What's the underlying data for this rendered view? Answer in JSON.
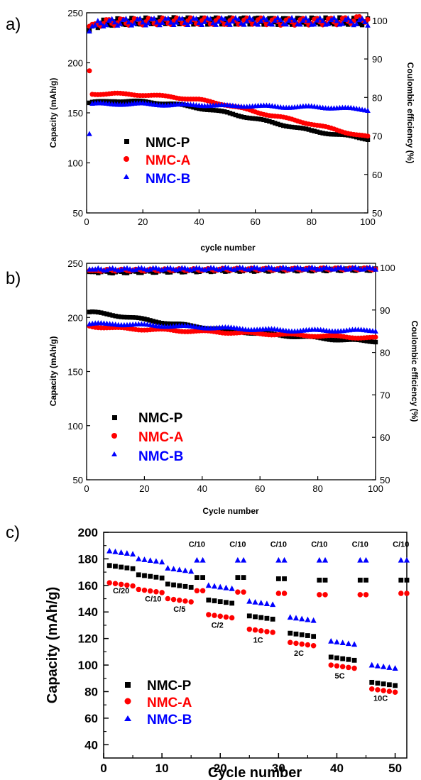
{
  "colors": {
    "NMC-P": "#000000",
    "NMC-A": "#ff0000",
    "NMC-B": "#0000ff"
  },
  "chart_data": [
    {
      "type": "scatter",
      "panel_label": "a)",
      "xlabel": "cycle number",
      "ylabel": "Capacity (mAh/g)",
      "y2label": "Coulombic efficiency (%)",
      "xlim": [
        0,
        100
      ],
      "ylim": [
        50,
        250
      ],
      "y2lim": [
        50,
        102
      ],
      "xticks": [
        "0",
        "20",
        "40",
        "60",
        "80",
        "100"
      ],
      "yticks": [
        "50",
        "100",
        "150",
        "200",
        "250"
      ],
      "y2ticks": [
        "50",
        "60",
        "70",
        "80",
        "90",
        "100"
      ],
      "legend": [
        "NMC-P",
        "NMC-A",
        "NMC-B"
      ],
      "series": [
        {
          "name": "NMC-P",
          "marker": "square",
          "capacity": {
            "cycles": [
              1,
              10,
              20,
              30,
              40,
              50,
              60,
              70,
              80,
              90,
              100
            ],
            "values": [
              160,
              162,
              161,
              159,
              155,
              150,
              144,
              138,
              132,
              128,
              124
            ]
          },
          "efficiency": {
            "cycles": [
              1,
              2,
              5,
              10,
              20,
              30,
              40,
              50,
              60,
              70,
              80,
              90,
              100
            ],
            "values": [
              97.5,
              98.5,
              99.2,
              99.6,
              99.8,
              99.9,
              99.8,
              99.9,
              99.9,
              99.8,
              99.9,
              99.9,
              99.6
            ]
          }
        },
        {
          "name": "NMC-A",
          "marker": "circle",
          "capacity": {
            "cycles": [
              1,
              2,
              10,
              20,
              30,
              40,
              50,
              60,
              70,
              80,
              90,
              100
            ],
            "values": [
              192,
              169,
              169,
              168,
              166,
              163,
              158,
              151,
              145,
              139,
              132,
              126
            ]
          },
          "efficiency": {
            "cycles": [
              1,
              2,
              5,
              10,
              20,
              30,
              40,
              50,
              60,
              70,
              80,
              90,
              100
            ],
            "values": [
              98.5,
              99,
              99.4,
              99.6,
              99.7,
              99.8,
              99.8,
              99.7,
              99.8,
              99.6,
              99.7,
              99.8,
              100.5
            ]
          }
        },
        {
          "name": "NMC-B",
          "marker": "triangle",
          "capacity": {
            "cycles": [
              1,
              2,
              10,
              20,
              30,
              40,
              50,
              60,
              70,
              80,
              90,
              100
            ],
            "values": [
              129,
              159,
              159,
              159,
              158,
              158,
              157,
              157,
              156,
              156,
              155,
              153
            ]
          },
          "efficiency": {
            "cycles": [
              1,
              2,
              5,
              10,
              20,
              30,
              40,
              50,
              60,
              70,
              80,
              90,
              100
            ],
            "values": [
              97.2,
              98.5,
              99.3,
              99.6,
              99.7,
              99.8,
              99.8,
              99.8,
              99.8,
              99.8,
              99.7,
              99.8,
              99.6
            ]
          }
        }
      ]
    },
    {
      "type": "scatter",
      "panel_label": "b)",
      "xlabel": "Cycle number",
      "ylabel": "Capacity (mAh/g)",
      "y2label": "Coulombic efficiency (%)",
      "xlim": [
        0,
        100
      ],
      "ylim": [
        50,
        250
      ],
      "y2lim": [
        50,
        101
      ],
      "xticks": [
        "0",
        "20",
        "40",
        "60",
        "80",
        "100"
      ],
      "yticks": [
        "50",
        "100",
        "150",
        "200",
        "250"
      ],
      "y2ticks": [
        "50",
        "60",
        "70",
        "80",
        "90",
        "100"
      ],
      "legend": [
        "NMC-P",
        "NMC-A",
        "NMC-B"
      ],
      "series": [
        {
          "name": "NMC-P",
          "marker": "square",
          "capacity": {
            "cycles": [
              1,
              10,
              20,
              30,
              40,
              50,
              60,
              70,
              80,
              90,
              100
            ],
            "values": [
              205,
              202,
              198,
              194,
              191,
              188,
              185,
              183,
              181,
              179,
              178
            ]
          },
          "efficiency": {
            "cycles": [
              1,
              10,
              20,
              30,
              40,
              50,
              60,
              70,
              80,
              90,
              100
            ],
            "values": [
              99.0,
              98.9,
              99.0,
              99.1,
              99.2,
              99.3,
              99.3,
              99.4,
              99.4,
              99.5,
              99.5
            ]
          }
        },
        {
          "name": "NMC-A",
          "marker": "circle",
          "capacity": {
            "cycles": [
              1,
              10,
              20,
              30,
              40,
              50,
              60,
              70,
              80,
              90,
              100
            ],
            "values": [
              192,
              190,
              189,
              188,
              187,
              186,
              185,
              184,
              183,
              182,
              181
            ]
          },
          "efficiency": {
            "cycles": [
              1,
              10,
              20,
              30,
              40,
              50,
              60,
              70,
              80,
              90,
              100
            ],
            "values": [
              99.3,
              99.4,
              99.4,
              99.5,
              99.5,
              99.6,
              99.6,
              99.6,
              99.7,
              99.7,
              99.7
            ]
          }
        },
        {
          "name": "NMC-B",
          "marker": "triangle",
          "capacity": {
            "cycles": [
              1,
              10,
              20,
              30,
              40,
              50,
              60,
              70,
              80,
              90,
              100
            ],
            "values": [
              194,
              194,
              193,
              192,
              191,
              190,
              189,
              188,
              188,
              188,
              188
            ]
          },
          "efficiency": {
            "cycles": [
              1,
              10,
              20,
              30,
              40,
              50,
              60,
              70,
              80,
              90,
              100
            ],
            "values": [
              99.6,
              99.6,
              99.7,
              99.7,
              99.7,
              99.8,
              99.8,
              99.8,
              99.8,
              99.8,
              99.8
            ]
          }
        }
      ]
    },
    {
      "type": "scatter",
      "panel_label": "c)",
      "xlabel": "Cycle number",
      "ylabel": "Capacity (mAh/g)",
      "xlim": [
        0,
        52
      ],
      "ylim": [
        30,
        200
      ],
      "xticks": [
        "0",
        "10",
        "20",
        "30",
        "40",
        "50"
      ],
      "yticks": [
        "40",
        "60",
        "80",
        "100",
        "120",
        "140",
        "160",
        "180",
        "200"
      ],
      "legend": [
        "NMC-P",
        "NMC-A",
        "NMC-B"
      ],
      "rate_blocks": [
        {
          "start": 1,
          "n": 5,
          "P": 175,
          "A": 162,
          "B": 186
        },
        {
          "start": 6,
          "n": 5,
          "P": 168,
          "A": 157,
          "B": 180
        },
        {
          "start": 11,
          "n": 5,
          "P": 161,
          "A": 150,
          "B": 173
        },
        {
          "start": 16,
          "n": 2,
          "P": 166,
          "A": 156,
          "B": 179
        },
        {
          "start": 18,
          "n": 5,
          "P": 149,
          "A": 138,
          "B": 160
        },
        {
          "start": 23,
          "n": 2,
          "P": 166,
          "A": 155,
          "B": 179
        },
        {
          "start": 25,
          "n": 5,
          "P": 137,
          "A": 127,
          "B": 148
        },
        {
          "start": 30,
          "n": 2,
          "P": 165,
          "A": 154,
          "B": 179
        },
        {
          "start": 32,
          "n": 5,
          "P": 124,
          "A": 117,
          "B": 136
        },
        {
          "start": 37,
          "n": 2,
          "P": 164,
          "A": 153,
          "B": 179
        },
        {
          "start": 39,
          "n": 5,
          "P": 106,
          "A": 100,
          "B": 118
        },
        {
          "start": 44,
          "n": 2,
          "P": 164,
          "A": 153,
          "B": 179
        },
        {
          "start": 46,
          "n": 5,
          "P": 87,
          "A": 82,
          "B": 100
        },
        {
          "start": 51,
          "n": 2,
          "P": 164,
          "A": 154,
          "B": 179
        }
      ],
      "annotations": [
        {
          "text": "C/20",
          "x": 3,
          "y": 154
        },
        {
          "text": "C/10",
          "x": 8.5,
          "y": 148
        },
        {
          "text": "C/5",
          "x": 13,
          "y": 140
        },
        {
          "text": "C/2",
          "x": 19.5,
          "y": 128
        },
        {
          "text": "1C",
          "x": 26.5,
          "y": 117
        },
        {
          "text": "2C",
          "x": 33.5,
          "y": 107
        },
        {
          "text": "5C",
          "x": 40.5,
          "y": 90
        },
        {
          "text": "10C",
          "x": 47.5,
          "y": 73
        },
        {
          "text": "C/10",
          "x": 16,
          "y": 189
        },
        {
          "text": "C/10",
          "x": 23,
          "y": 189
        },
        {
          "text": "C/10",
          "x": 30,
          "y": 189
        },
        {
          "text": "C/10",
          "x": 37,
          "y": 189
        },
        {
          "text": "C/10",
          "x": 44,
          "y": 189
        },
        {
          "text": "C/10",
          "x": 51,
          "y": 189
        }
      ]
    }
  ]
}
